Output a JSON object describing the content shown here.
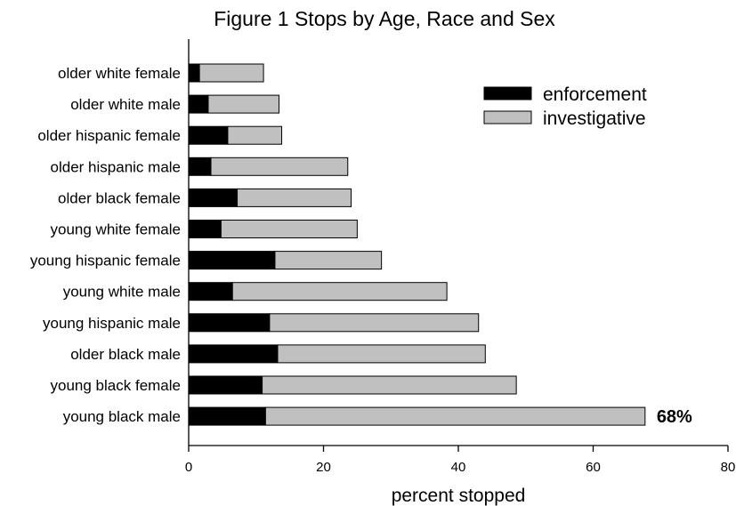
{
  "chart_data": {
    "type": "bar",
    "orientation": "horizontal",
    "stacked": true,
    "title": "Figure 1  Stops by Age, Race and Sex",
    "xlabel": "percent stopped",
    "ylabel": "",
    "xlim": [
      0,
      80
    ],
    "xticks": [
      0,
      20,
      40,
      60,
      80
    ],
    "grid": false,
    "legend_position": "top-right",
    "categories": [
      "older white female",
      "older white male",
      "older hispanic female",
      "older hispanic male",
      "older black female",
      "young white female",
      "young hispanic female",
      "young white male",
      "young hispanic male",
      "older black male",
      "young black female",
      "young black male"
    ],
    "series": [
      {
        "name": "enforcement",
        "color": "#000000",
        "values": [
          1.6,
          2.9,
          5.8,
          3.3,
          7.2,
          4.8,
          12.8,
          6.5,
          12.0,
          13.2,
          10.9,
          11.4
        ]
      },
      {
        "name": "investigative",
        "color": "#c0c0c0",
        "values": [
          9.5,
          10.5,
          8.0,
          20.3,
          16.9,
          20.2,
          15.8,
          31.8,
          31.0,
          30.8,
          37.7,
          56.3
        ]
      }
    ],
    "annotations": [
      {
        "text": "68%",
        "category": "young black male"
      }
    ]
  }
}
